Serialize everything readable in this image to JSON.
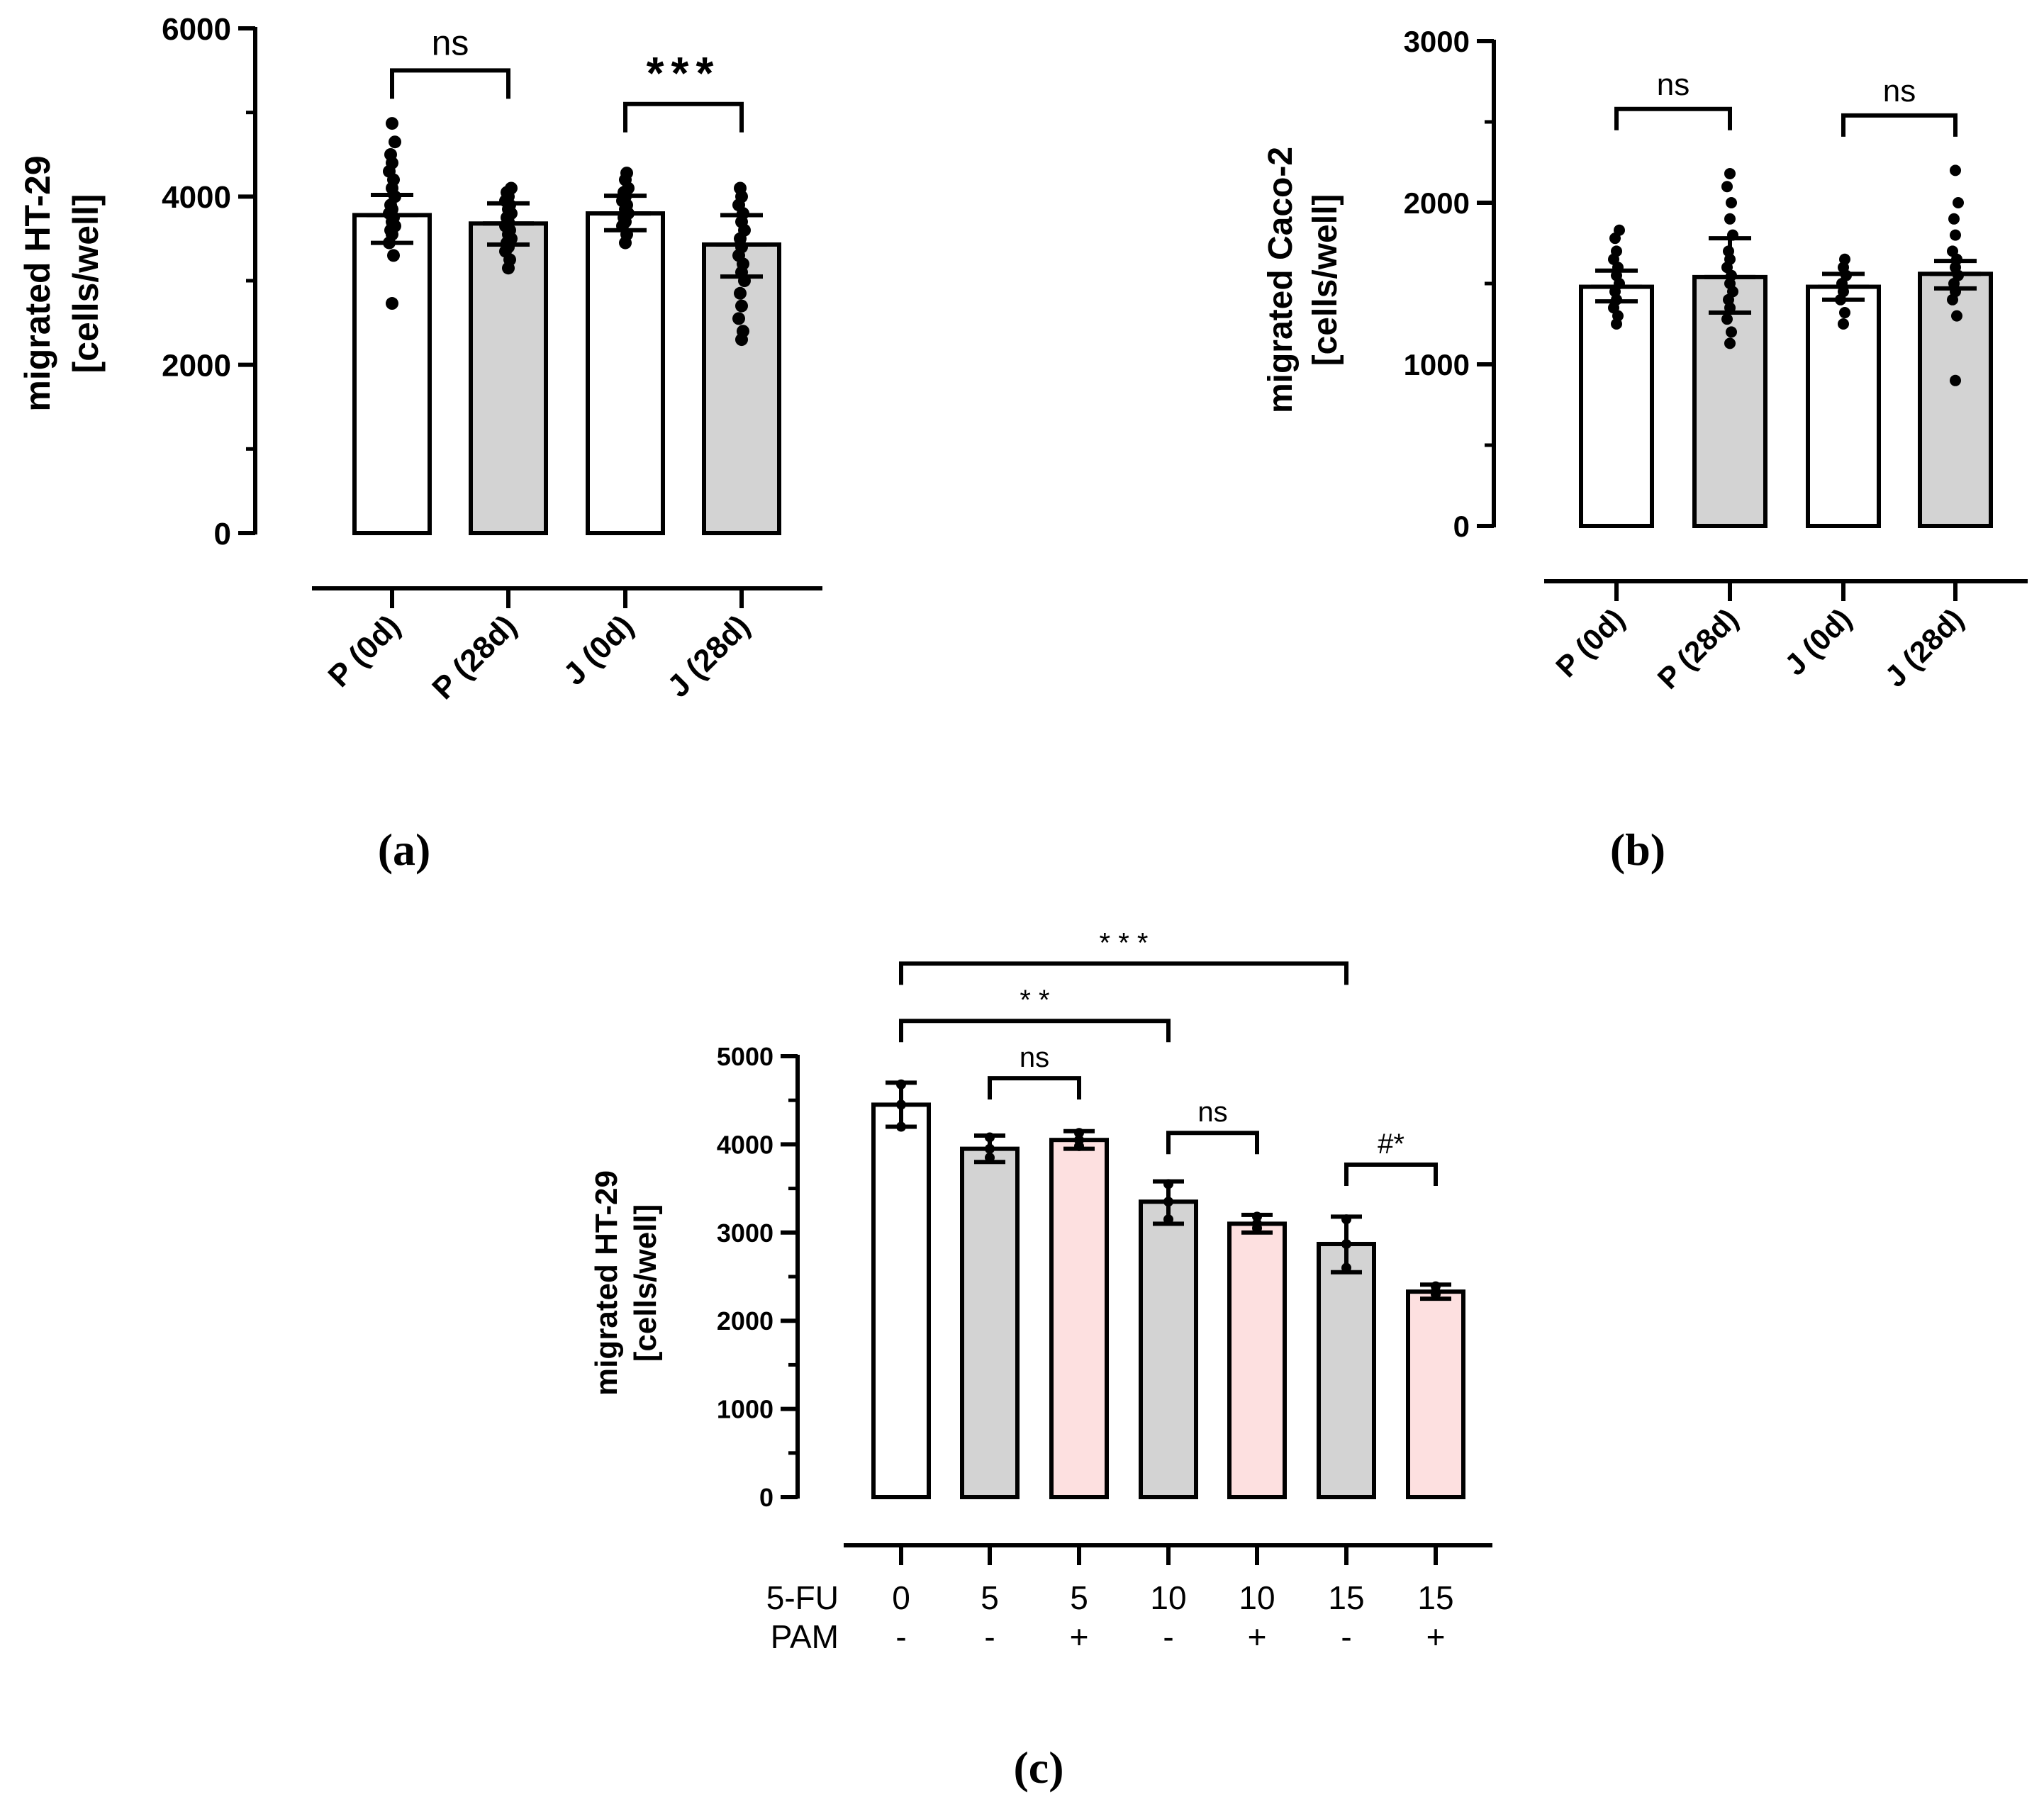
{
  "panels": {
    "a": {
      "caption": "(a)"
    },
    "b": {
      "caption": "(b)"
    },
    "c": {
      "caption": "(c)"
    }
  },
  "colors": {
    "white_bar": "#ffffff",
    "grey_bar": "#d3d3d3",
    "pink_bar": "#fde0e0",
    "ink": "#000000"
  },
  "chart_data": [
    {
      "id": "a",
      "type": "bar",
      "ylabel_line1": "migrated HT-29",
      "ylabel_line2": "[cells/well]",
      "ylim": [
        0,
        6000
      ],
      "yticks": [
        "0",
        "2000",
        "4000",
        "6000"
      ],
      "categories": [
        "P (0d)",
        "P (28d)",
        "J (0d)",
        "J (28d)"
      ],
      "fills": [
        "white",
        "grey",
        "white",
        "grey"
      ],
      "values": [
        3780,
        3680,
        3800,
        3430
      ],
      "err_low": [
        3450,
        3430,
        3600,
        3050
      ],
      "err_high": [
        4020,
        3920,
        4010,
        3780
      ],
      "points": [
        [
          2730,
          3300,
          3450,
          3550,
          3600,
          3650,
          3700,
          3750,
          3800,
          3850,
          3900,
          4000,
          4100,
          4200,
          4300,
          4400,
          4500,
          4650,
          4870
        ],
        [
          3150,
          3250,
          3350,
          3400,
          3450,
          3500,
          3550,
          3600,
          3650,
          3700,
          3750,
          3800,
          3850,
          3900,
          3950,
          4000,
          4050,
          4100
        ],
        [
          3450,
          3550,
          3650,
          3700,
          3750,
          3800,
          3850,
          3900,
          3950,
          4000,
          4050,
          4100,
          4200,
          4280
        ],
        [
          2300,
          2400,
          2550,
          2700,
          2850,
          3000,
          3100,
          3200,
          3300,
          3400,
          3500,
          3600,
          3700,
          3800,
          3900,
          4000,
          4100
        ]
      ],
      "brackets": [
        {
          "from": 0,
          "to": 1,
          "y": 5500,
          "label": "ns"
        },
        {
          "from": 2,
          "to": 3,
          "y": 5100,
          "label": "***"
        }
      ]
    },
    {
      "id": "b",
      "type": "bar",
      "ylabel_line1": "migrated Caco-2",
      "ylabel_line2": "[cells/well]",
      "ylim": [
        0,
        3000
      ],
      "yticks": [
        "0",
        "1000",
        "2000",
        "3000"
      ],
      "categories": [
        "P (0d)",
        "P (28d)",
        "J (0d)",
        "J (28d)"
      ],
      "fills": [
        "white",
        "grey",
        "white",
        "grey"
      ],
      "values": [
        1480,
        1540,
        1480,
        1560
      ],
      "err_low": [
        1390,
        1320,
        1400,
        1470
      ],
      "err_high": [
        1580,
        1780,
        1560,
        1640
      ],
      "points": [
        [
          1250,
          1300,
          1350,
          1400,
          1450,
          1500,
          1550,
          1600,
          1650,
          1700,
          1780,
          1830
        ],
        [
          1130,
          1200,
          1280,
          1350,
          1400,
          1450,
          1500,
          1550,
          1600,
          1650,
          1700,
          1800,
          1900,
          2000,
          2100,
          2180
        ],
        [
          1250,
          1320,
          1400,
          1450,
          1500,
          1550,
          1600,
          1650
        ],
        [
          900,
          1300,
          1400,
          1450,
          1500,
          1550,
          1600,
          1650,
          1700,
          1800,
          1900,
          2000,
          2200
        ]
      ],
      "brackets": [
        {
          "from": 0,
          "to": 1,
          "y": 2580,
          "label": "ns"
        },
        {
          "from": 2,
          "to": 3,
          "y": 2540,
          "label": "ns"
        }
      ]
    },
    {
      "id": "c",
      "type": "bar",
      "ylabel_line1": "migrated HT-29",
      "ylabel_line2": "[cells/well]",
      "ylim": [
        0,
        5000
      ],
      "yticks": [
        "0",
        "1000",
        "2000",
        "3000",
        "4000",
        "5000"
      ],
      "row1_label": "5-FU",
      "row2_label": "PAM",
      "five_fu": [
        "0",
        "5",
        "5",
        "10",
        "10",
        "15",
        "15"
      ],
      "pam": [
        "-",
        "-",
        "+",
        "-",
        "+",
        "-",
        "+"
      ],
      "fills": [
        "white",
        "grey",
        "pink",
        "grey",
        "pink",
        "grey",
        "pink"
      ],
      "values": [
        4450,
        3950,
        4050,
        3350,
        3100,
        2870,
        2330
      ],
      "err_low": [
        4200,
        3800,
        3950,
        3100,
        3000,
        2550,
        2250
      ],
      "err_high": [
        4700,
        4100,
        4150,
        3580,
        3200,
        3180,
        2410
      ],
      "points": [
        [
          4200,
          4450,
          4680
        ],
        [
          3850,
          3950,
          4080
        ],
        [
          3980,
          4050,
          4130
        ],
        [
          3150,
          3350,
          3550
        ],
        [
          3050,
          3100,
          3180
        ],
        [
          2600,
          2870,
          3150
        ],
        [
          2300,
          2330,
          2390
        ]
      ],
      "brackets": [
        {
          "from": 0,
          "to": 5,
          "y": 6050,
          "label": "* * *"
        },
        {
          "from": 0,
          "to": 3,
          "y": 5400,
          "label": "* *"
        },
        {
          "from": 1,
          "to": 2,
          "y": 4750,
          "label": "ns"
        },
        {
          "from": 3,
          "to": 4,
          "y": 4130,
          "label": "ns"
        },
        {
          "from": 5,
          "to": 6,
          "y": 3770,
          "label": "#*"
        }
      ]
    }
  ]
}
